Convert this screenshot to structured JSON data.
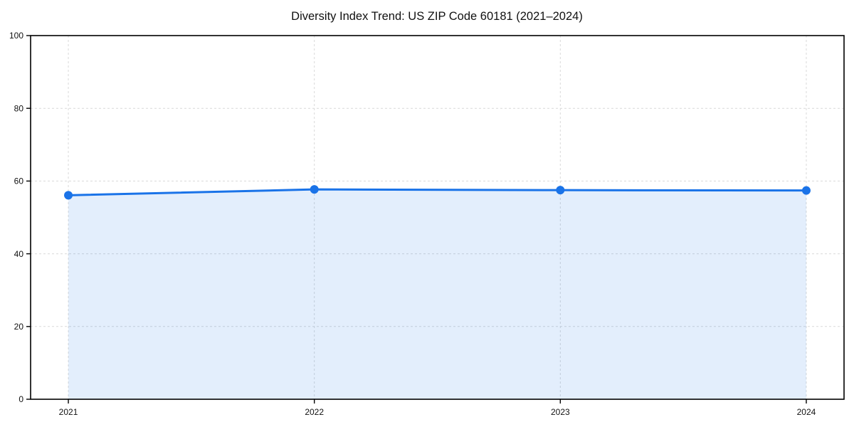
{
  "chart_data": {
    "type": "area",
    "title": "Diversity Index Trend: US ZIP Code 60181 (2021–2024)",
    "categories": [
      "2021",
      "2022",
      "2023",
      "2024"
    ],
    "series": [
      {
        "name": "Diversity Index",
        "values": [
          56.1,
          57.7,
          57.5,
          57.4
        ]
      }
    ],
    "xlabel": "",
    "ylabel": "",
    "ylim": [
      0,
      100
    ],
    "yticks": [
      0,
      20,
      40,
      60,
      80,
      100
    ],
    "grid": true,
    "grid_style": "dashed",
    "legend_position": "none",
    "colors": {
      "line": "#1a73e8",
      "marker": "#1a73e8",
      "fill": "rgba(26,115,232,0.12)",
      "grid": "#d9d9d9",
      "spine": "#000000",
      "background": "#ffffff",
      "tick_label": "#111111"
    }
  }
}
